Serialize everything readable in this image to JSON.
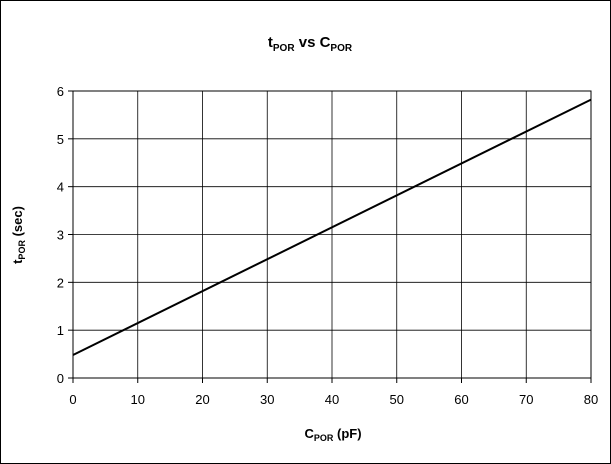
{
  "chart_data": {
    "type": "line",
    "title": {
      "main": "t",
      "sub": "POR",
      "mid": " vs C",
      "sub2": "POR"
    },
    "xlabel": {
      "main": "C",
      "sub": "POR",
      "rest": " (pF)"
    },
    "ylabel": {
      "main": "t",
      "sub": "POR",
      "rest": " (sec)"
    },
    "xlim": [
      0,
      80
    ],
    "ylim": [
      0,
      6
    ],
    "x_ticks": [
      0,
      10,
      20,
      30,
      40,
      50,
      60,
      70,
      80
    ],
    "y_ticks": [
      0,
      1,
      2,
      3,
      4,
      5,
      6
    ],
    "grid": true,
    "legend": "none",
    "series": [
      {
        "x": [
          0,
          80
        ],
        "y": [
          0.48,
          5.82
        ],
        "color": "#000000"
      }
    ]
  }
}
